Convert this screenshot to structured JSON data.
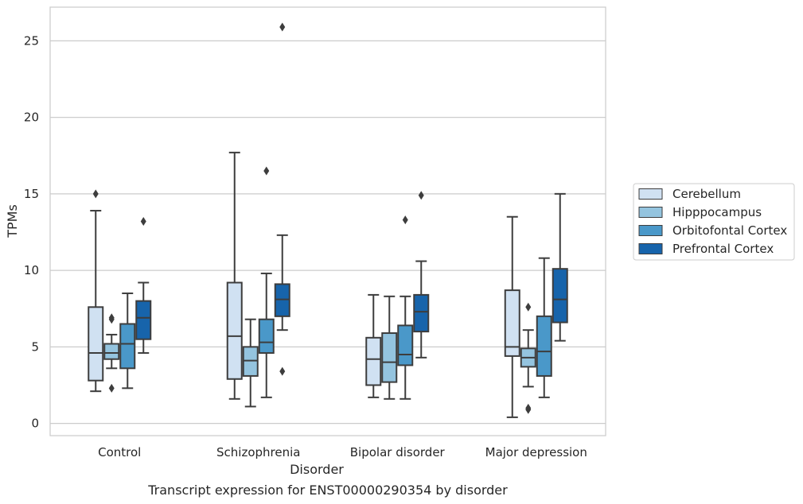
{
  "chart_data": {
    "type": "box",
    "title": "",
    "caption": "Transcript expression for ENST00000290354 by disorder",
    "xlabel": "Disorder",
    "ylabel": "TPMs",
    "ylim": [
      -0.8,
      27.2
    ],
    "yticks": [
      0,
      5,
      10,
      15,
      20,
      25
    ],
    "grid": "horizontal",
    "legend_position": "right",
    "categories": [
      "Control",
      "Schizophrenia",
      "Bipolar disorder",
      "Major depression"
    ],
    "series": [
      {
        "name": "Cerebellum",
        "color": "#d0e1f2",
        "boxes": [
          {
            "whisker_low": 2.1,
            "q1": 2.8,
            "median": 4.6,
            "q3": 7.6,
            "whisker_high": 13.9,
            "outliers": [
              15.0
            ]
          },
          {
            "whisker_low": 1.6,
            "q1": 2.9,
            "median": 5.7,
            "q3": 9.2,
            "whisker_high": 17.7,
            "outliers": []
          },
          {
            "whisker_low": 1.7,
            "q1": 2.5,
            "median": 4.2,
            "q3": 5.6,
            "whisker_high": 8.4,
            "outliers": []
          },
          {
            "whisker_low": 0.4,
            "q1": 4.4,
            "median": 5.0,
            "q3": 8.7,
            "whisker_high": 13.5,
            "outliers": []
          }
        ]
      },
      {
        "name": "Hipppocampus",
        "color": "#94c4df",
        "boxes": [
          {
            "whisker_low": 3.6,
            "q1": 4.2,
            "median": 4.6,
            "q3": 5.2,
            "whisker_high": 5.8,
            "outliers": [
              2.3,
              6.8,
              6.9
            ]
          },
          {
            "whisker_low": 1.1,
            "q1": 3.1,
            "median": 4.1,
            "q3": 5.0,
            "whisker_high": 6.8,
            "outliers": []
          },
          {
            "whisker_low": 1.6,
            "q1": 2.7,
            "median": 4.0,
            "q3": 5.9,
            "whisker_high": 8.3,
            "outliers": []
          },
          {
            "whisker_low": 2.4,
            "q1": 3.7,
            "median": 4.3,
            "q3": 4.9,
            "whisker_high": 6.1,
            "outliers": [
              0.9,
              1.0,
              7.6
            ]
          }
        ]
      },
      {
        "name": "Orbitofontal Cortex",
        "color": "#4a98c9",
        "boxes": [
          {
            "whisker_low": 2.3,
            "q1": 3.6,
            "median": 5.2,
            "q3": 6.5,
            "whisker_high": 8.5,
            "outliers": []
          },
          {
            "whisker_low": 1.7,
            "q1": 4.6,
            "median": 5.3,
            "q3": 6.8,
            "whisker_high": 9.8,
            "outliers": [
              16.5
            ]
          },
          {
            "whisker_low": 1.6,
            "q1": 3.8,
            "median": 4.5,
            "q3": 6.4,
            "whisker_high": 8.3,
            "outliers": [
              13.3
            ]
          },
          {
            "whisker_low": 1.7,
            "q1": 3.1,
            "median": 4.7,
            "q3": 7.0,
            "whisker_high": 10.8,
            "outliers": []
          }
        ]
      },
      {
        "name": "Prefrontal Cortex",
        "color": "#1764ab",
        "boxes": [
          {
            "whisker_low": 4.6,
            "q1": 5.5,
            "median": 6.9,
            "q3": 8.0,
            "whisker_high": 9.2,
            "outliers": [
              13.2
            ]
          },
          {
            "whisker_low": 6.1,
            "q1": 7.0,
            "median": 8.1,
            "q3": 9.1,
            "whisker_high": 12.3,
            "outliers": [
              3.4,
              25.9
            ]
          },
          {
            "whisker_low": 4.3,
            "q1": 6.0,
            "median": 7.3,
            "q3": 8.4,
            "whisker_high": 10.6,
            "outliers": [
              14.9
            ]
          },
          {
            "whisker_low": 5.4,
            "q1": 6.6,
            "median": 8.1,
            "q3": 10.1,
            "whisker_high": 15.0,
            "outliers": []
          }
        ]
      }
    ]
  }
}
